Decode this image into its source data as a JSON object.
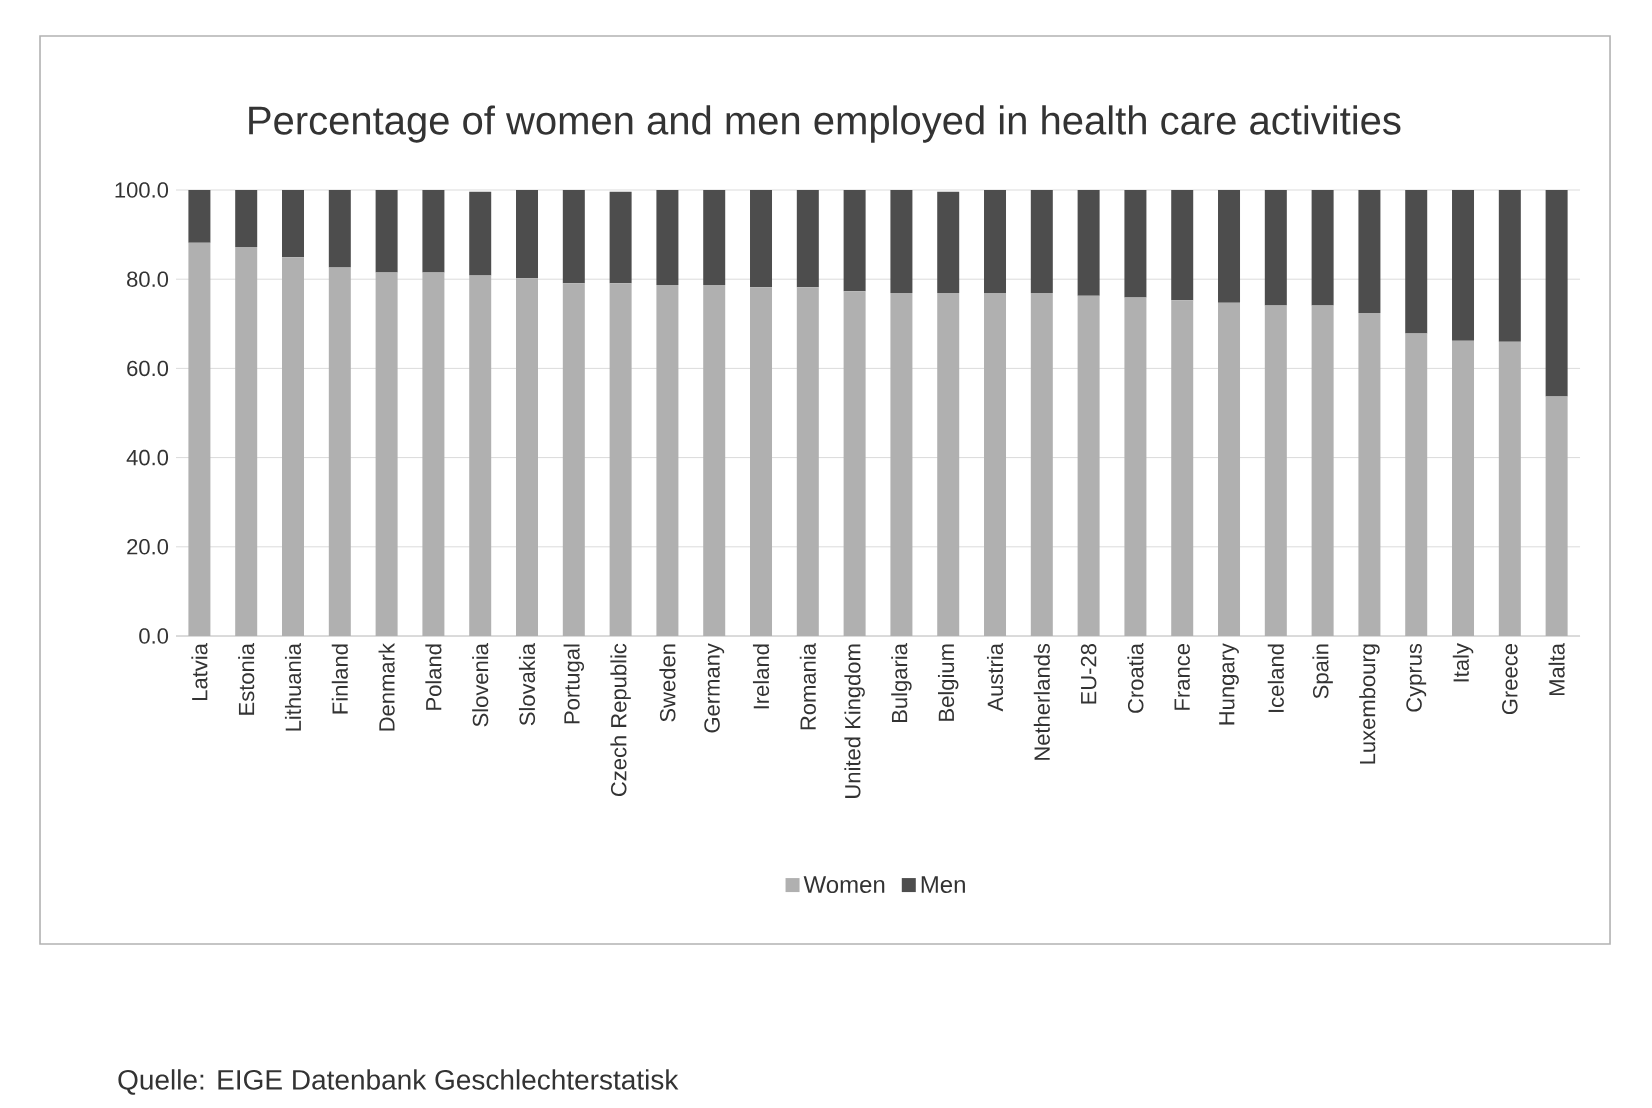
{
  "chart_data": {
    "type": "bar",
    "stacked": true,
    "title": "Percentage of women and men employed in health care activities",
    "categories": [
      "Latvia",
      "Estonia",
      "Lithuania",
      "Finland",
      "Denmark",
      "Poland",
      "Slovenia",
      "Slovakia",
      "Portugal",
      "Czech Republic",
      "Sweden",
      "Germany",
      "Ireland",
      "Romania",
      "United Kingdom",
      "Bulgaria",
      "Belgium",
      "Austria",
      "Netherlands",
      "EU-28",
      "Croatia",
      "France",
      "Hungary",
      "Iceland",
      "Spain",
      "Luxembourg",
      "Cyprus",
      "Italy",
      "Greece",
      "Malta"
    ],
    "series": [
      {
        "name": "Women",
        "color": "#b0b0b0",
        "values": [
          88.2,
          87.2,
          84.9,
          82.6,
          81.5,
          81.5,
          80.8,
          80.2,
          79.1,
          79.1,
          78.7,
          78.7,
          78.2,
          78.2,
          77.3,
          76.9,
          76.9,
          76.9,
          76.9,
          76.3,
          75.9,
          75.3,
          74.7,
          74.1,
          74.1,
          72.4,
          67.8,
          66.2,
          66.0,
          53.7
        ]
      },
      {
        "name": "Men",
        "color": "#4d4d4d",
        "values": [
          11.8,
          12.8,
          15.1,
          17.4,
          18.5,
          18.5,
          18.8,
          19.8,
          20.9,
          20.5,
          21.3,
          21.3,
          21.8,
          21.8,
          22.7,
          23.1,
          22.7,
          23.1,
          23.1,
          23.7,
          24.1,
          24.7,
          25.3,
          25.9,
          25.9,
          27.6,
          32.2,
          33.8,
          34.0,
          46.3
        ]
      }
    ],
    "ylim": [
      0,
      100
    ],
    "yticks": [
      {
        "value": 0,
        "label": "0.0"
      },
      {
        "value": 20,
        "label": "20.0"
      },
      {
        "value": 40,
        "label": "40.0"
      },
      {
        "value": 60,
        "label": "60.0"
      },
      {
        "value": 80,
        "label": "80.0"
      },
      {
        "value": 100,
        "label": "100.0"
      }
    ],
    "grid": "y",
    "legend": "bottom",
    "annotations": [
      "Quelle: EIGE Datenbank Geschlechterstatisk"
    ]
  }
}
